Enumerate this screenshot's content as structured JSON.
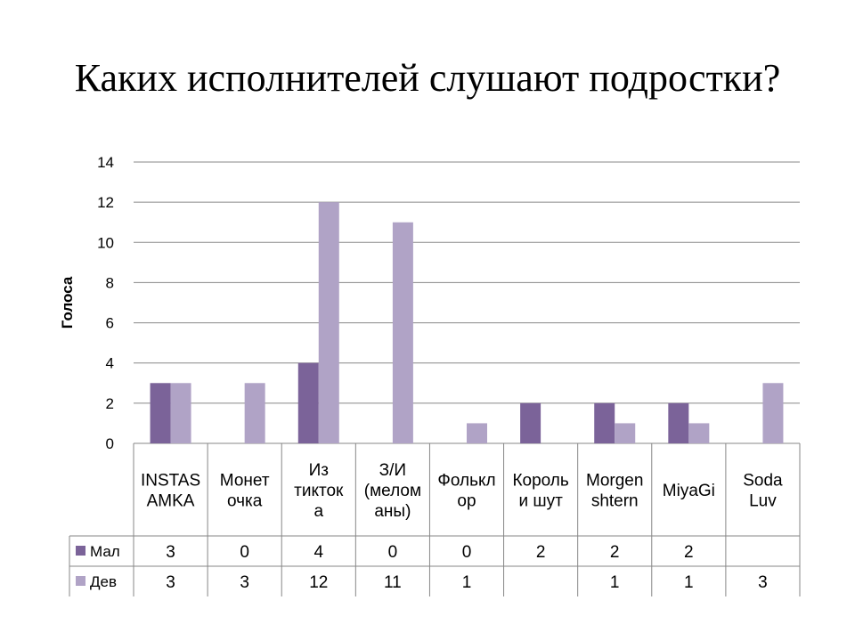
{
  "slide": {
    "title": "Каких исполнителей слушают подростки?"
  },
  "chart_data": {
    "type": "bar",
    "ylabel": "Голоса",
    "ylim": [
      0,
      14
    ],
    "yticks": [
      0,
      2,
      4,
      6,
      8,
      10,
      12,
      14
    ],
    "grid": true,
    "categories": [
      [
        "INSTAS",
        "AMKA"
      ],
      [
        "Монет",
        "очка"
      ],
      [
        "Из",
        "тикток",
        "а"
      ],
      [
        "З/И",
        "(мелом",
        "аны)"
      ],
      [
        "Фолькл",
        "ор"
      ],
      [
        "Король",
        "и шут"
      ],
      [
        "Morgen",
        "shtern"
      ],
      [
        "MiyaGi"
      ],
      [
        "Soda",
        "Luv"
      ]
    ],
    "series": [
      {
        "name": "Мал",
        "color": "#7b6399",
        "values": [
          3,
          0,
          4,
          0,
          0,
          2,
          2,
          2,
          null
        ]
      },
      {
        "name": "Дев",
        "color": "#b0a3c6",
        "values": [
          3,
          3,
          12,
          11,
          1,
          null,
          1,
          1,
          3
        ]
      }
    ],
    "data_table": true,
    "legend": "data-table"
  }
}
